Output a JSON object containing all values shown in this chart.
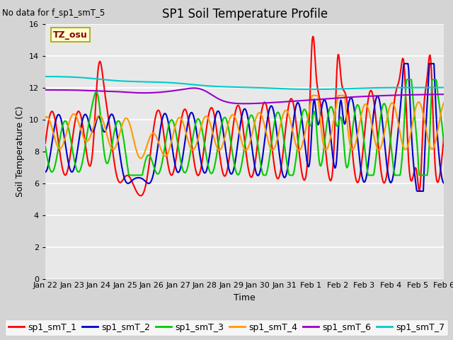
{
  "title": "SP1 Soil Temperature Profile",
  "xlabel": "Time",
  "ylabel": "Soil Temperature (C)",
  "no_data_text": "No data for f_sp1_smT_5",
  "tz_label": "TZ_osu",
  "ylim": [
    0,
    16
  ],
  "yticks": [
    0,
    2,
    4,
    6,
    8,
    10,
    12,
    14,
    16
  ],
  "series_colors": {
    "sp1_smT_1": "#ff0000",
    "sp1_smT_2": "#0000cc",
    "sp1_smT_3": "#00cc00",
    "sp1_smT_4": "#ff9900",
    "sp1_smT_6": "#9900cc",
    "sp1_smT_7": "#00cccc"
  },
  "x_tick_labels": [
    "Jan 22",
    "Jan 23",
    "Jan 24",
    "Jan 25",
    "Jan 26",
    "Jan 27",
    "Jan 28",
    "Jan 29",
    "Jan 30",
    "Jan 31",
    "Feb 1",
    "Feb 2",
    "Feb 3",
    "Feb 4",
    "Feb 5",
    "Feb 6"
  ],
  "fig_bg": "#d4d4d4",
  "ax_bg": "#e8e8e8",
  "grid_color": "#ffffff",
  "linewidth": 1.5,
  "title_fontsize": 12,
  "label_fontsize": 9,
  "tick_fontsize": 8,
  "legend_fontsize": 9
}
